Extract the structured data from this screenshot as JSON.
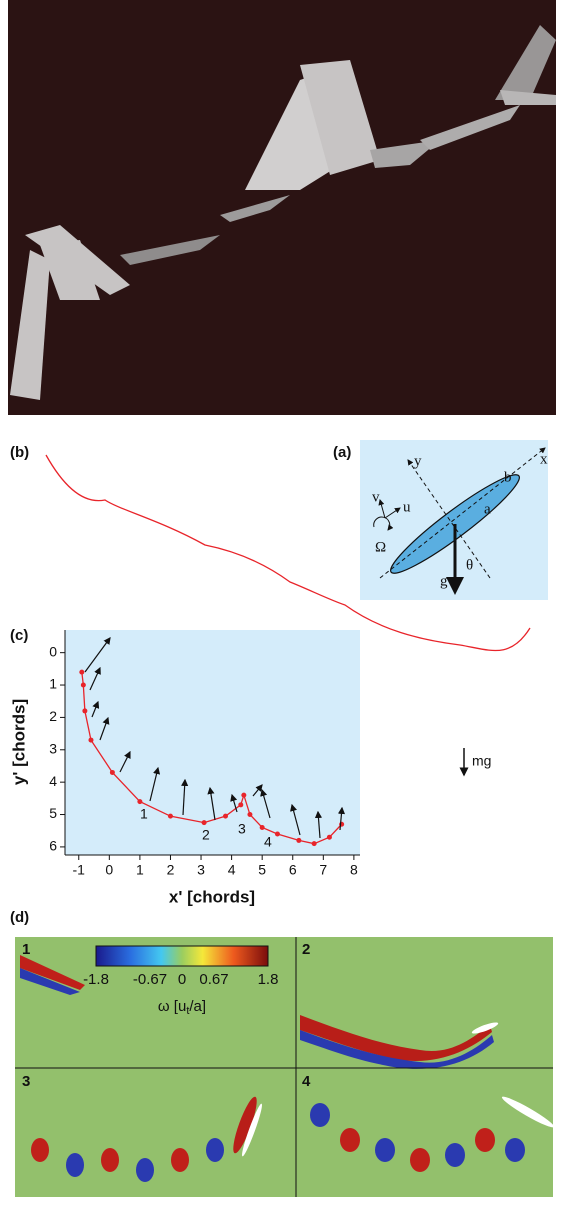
{
  "panels": {
    "b": {
      "label": "(b)"
    },
    "a": {
      "label": "(a)",
      "symbols": {
        "x": "x",
        "y": "y",
        "b": "b",
        "a": "a",
        "v": "v",
        "u": "u",
        "omega": "Ω",
        "g": "g",
        "theta": "θ"
      }
    },
    "c": {
      "label": "(c)",
      "xlabel": "x' [chords]",
      "ylabel": "y' [chords]",
      "xlim": [
        -1.45,
        8.2
      ],
      "xticks": [
        -1,
        0,
        1,
        2,
        3,
        4,
        5,
        6,
        7,
        8
      ],
      "ylim": [
        -0.7,
        6.25
      ],
      "yticks": [
        0,
        1,
        2,
        3,
        4,
        5,
        6
      ],
      "path": {
        "x": [
          -0.9,
          -0.85,
          -0.8,
          -0.6,
          0.1,
          1,
          2,
          3.1,
          3.8,
          4.3,
          4.4,
          4.6,
          5,
          5.5,
          6.2,
          6.7,
          7.2,
          7.6
        ],
        "y": [
          0.6,
          1,
          1.8,
          2.7,
          3.7,
          4.6,
          5.05,
          5.25,
          5.05,
          4.7,
          4.4,
          5,
          5.4,
          5.6,
          5.8,
          5.9,
          5.7,
          5.3
        ]
      },
      "markers": [
        "1",
        "2",
        "3",
        "4"
      ],
      "force_label": "mg"
    },
    "d": {
      "label": "(d)",
      "frames": [
        "1",
        "2",
        "3",
        "4"
      ],
      "colorbar": {
        "ticks": [
          -1.8,
          -0.67,
          0,
          0.67,
          1.8
        ],
        "label": [
          "ω [u",
          "t",
          "/a]"
        ]
      }
    }
  }
}
